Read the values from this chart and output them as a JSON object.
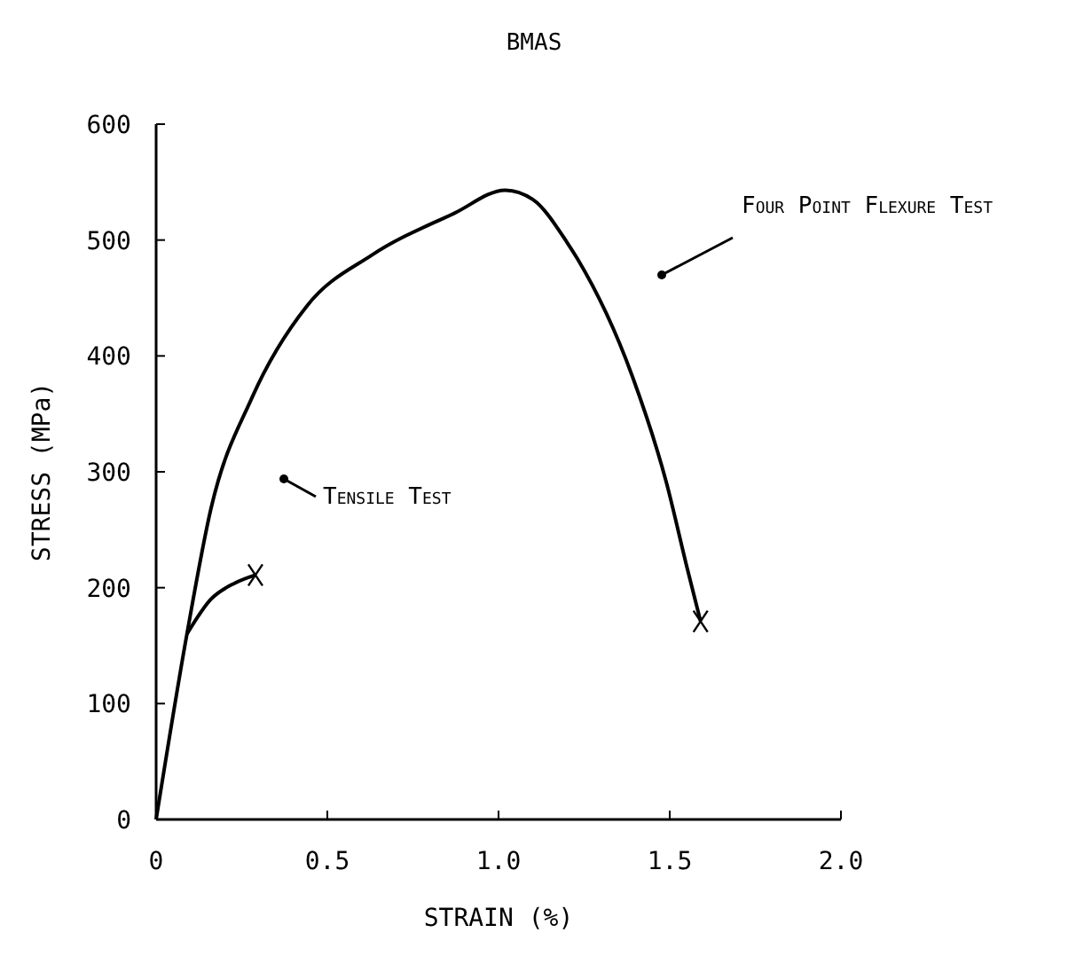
{
  "chart_data": {
    "type": "line",
    "title": "BMAS",
    "xlabel": "STRAIN (%)",
    "ylabel": "STRESS (MPa)",
    "xlim": [
      0,
      2.0
    ],
    "xticks": [
      {
        "value": 0,
        "label": "0"
      },
      0.5,
      {
        "value": 1.0,
        "label": "1.0"
      },
      1.5,
      {
        "value": 2.0,
        "label": "2.0"
      }
    ],
    "ylim": [
      0,
      600
    ],
    "yticks": [
      0,
      100,
      200,
      300,
      400,
      500,
      600
    ],
    "grid": false,
    "marker": "none",
    "line_style": "solid",
    "series": [
      {
        "name": "Four Point Flexure Test",
        "color": "#000000",
        "x": [
          0,
          0.09,
          0.16,
          0.28,
          0.44,
          0.63,
          0.87,
          1.02,
          1.1,
          1.2,
          1.23,
          1.39,
          1.49,
          1.55,
          1.59
        ],
        "values": [
          0,
          160,
          268,
          364,
          443,
          487,
          523,
          543,
          535,
          498,
          484,
          383,
          291,
          218,
          171
        ]
      },
      {
        "name": "Tensile Test",
        "color": "#000000",
        "x": [
          0.09,
          0.16,
          0.23,
          0.29
        ],
        "values": [
          160,
          190,
          204,
          211
        ]
      }
    ]
  }
}
